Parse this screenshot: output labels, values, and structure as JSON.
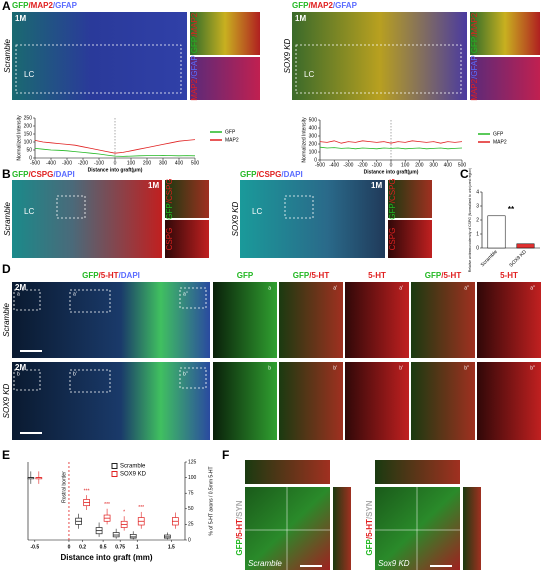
{
  "panels": {
    "A": {
      "letter": "A",
      "left": {
        "stain": {
          "parts": [
            "GFP",
            "/MAP2",
            "/GFAP"
          ],
          "colors": [
            "#22b822",
            "#e02020",
            "#5a6cff"
          ]
        },
        "time": "1M",
        "condition": "Scramble",
        "region": "LC",
        "insets": [
          {
            "parts": [
              "GFP",
              "/MAP2"
            ],
            "colors": [
              "#22b822",
              "#e02020"
            ]
          },
          {
            "parts": [
              "MAP2",
              "/GFAP"
            ],
            "colors": [
              "#e02020",
              "#5a6cff"
            ]
          }
        ]
      },
      "right": {
        "stain": {
          "parts": [
            "GFP",
            "/MAP2",
            "/GFAP"
          ],
          "colors": [
            "#22b822",
            "#e02020",
            "#5a6cff"
          ]
        },
        "time": "1M",
        "condition": "SOX9 KD",
        "region": "LC",
        "insets": [
          {
            "parts": [
              "GFP",
              "/MAP2"
            ],
            "colors": [
              "#22b822",
              "#e02020"
            ]
          },
          {
            "parts": [
              "MAP2",
              "/GFAP"
            ],
            "colors": [
              "#e02020",
              "#5a6cff"
            ]
          }
        ]
      }
    },
    "B": {
      "letter": "B",
      "left": {
        "stain": {
          "parts": [
            "GFP",
            "/CSPG",
            "/DAPI"
          ],
          "colors": [
            "#22b822",
            "#e02020",
            "#5a6cff"
          ]
        },
        "time": "1M",
        "condition": "Scramble",
        "region": "LC",
        "insets": [
          {
            "parts": [
              "GFP",
              "/CSPG"
            ],
            "colors": [
              "#22b822",
              "#e02020"
            ]
          },
          {
            "parts": [
              "CSPG"
            ],
            "colors": [
              "#e02020"
            ]
          }
        ]
      },
      "right": {
        "stain": {
          "parts": [
            "GFP",
            "/CSPG",
            "/DAPI"
          ],
          "colors": [
            "#22b822",
            "#e02020",
            "#5a6cff"
          ]
        },
        "time": "1M",
        "condition": "SOX9 KD",
        "region": "LC",
        "insets": [
          {
            "parts": [
              "GFP",
              "/CSPG"
            ],
            "colors": [
              "#22b822",
              "#e02020"
            ]
          },
          {
            "parts": [
              "CSPG"
            ],
            "colors": [
              "#e02020"
            ]
          }
        ]
      }
    },
    "C": {
      "letter": "C"
    },
    "D": {
      "letter": "D",
      "headers": [
        {
          "parts": [
            "GFP",
            "/5-HT",
            "/DAPI"
          ],
          "colors": [
            "#22b822",
            "#e02020",
            "#5a6cff"
          ]
        },
        {
          "parts": [
            "GFP"
          ],
          "colors": [
            "#22b822"
          ]
        },
        {
          "parts": [
            "GFP",
            "/5-HT"
          ],
          "colors": [
            "#22b822",
            "#e02020"
          ]
        },
        {
          "parts": [
            "5-HT"
          ],
          "colors": [
            "#e02020"
          ]
        },
        {
          "parts": [
            "GFP",
            "/5-HT"
          ],
          "colors": [
            "#22b822",
            "#e02020"
          ]
        },
        {
          "parts": [
            "5-HT"
          ],
          "colors": [
            "#e02020"
          ]
        }
      ],
      "rows": [
        {
          "condition": "Scramble",
          "time": "2M",
          "tags": [
            "a",
            "a'",
            "a''"
          ],
          "inset_tags": [
            "a",
            "a'",
            "a'",
            "a''",
            "a''"
          ]
        },
        {
          "condition": "SOX9 KD",
          "time": "2M",
          "tags": [
            "b",
            "b'",
            "b''"
          ],
          "inset_tags": [
            "b",
            "b'",
            "b'",
            "b''",
            "b''"
          ]
        }
      ]
    },
    "E": {
      "letter": "E"
    },
    "F": {
      "letter": "F",
      "stain": {
        "parts": [
          "GFP",
          "/5-HT",
          "/SYN"
        ],
        "colors": [
          "#22b822",
          "#e02020",
          "#aaaaaa"
        ]
      },
      "conditions": [
        "Scramble",
        "Sox9 KD"
      ]
    }
  },
  "chart_data": [
    {
      "type": "line",
      "ylabel": "Normalized Intensity",
      "xlabel": "Distance into graft(μm)",
      "x": [
        -500,
        -450,
        -400,
        -350,
        -300,
        -250,
        -200,
        -150,
        -100,
        -50,
        0,
        50,
        100,
        150,
        200,
        250,
        300,
        350,
        400,
        450,
        500
      ],
      "xlim": [
        -500,
        500
      ],
      "xticks": [
        -500,
        -400,
        -300,
        -200,
        -100,
        0,
        100,
        200,
        300,
        400,
        500
      ],
      "ylim": [
        0,
        250
      ],
      "yticks": [
        0,
        50,
        100,
        150,
        200,
        250
      ],
      "series": [
        {
          "name": "GFP",
          "color": "#22b822",
          "values": [
            60,
            55,
            50,
            48,
            45,
            40,
            35,
            30,
            25,
            18,
            12,
            10,
            12,
            14,
            15,
            15,
            16,
            15,
            14,
            15,
            14
          ]
        },
        {
          "name": "MAP2",
          "color": "#e02020",
          "values": [
            110,
            100,
            95,
            90,
            85,
            80,
            70,
            60,
            50,
            40,
            30,
            35,
            45,
            55,
            65,
            75,
            85,
            95,
            105,
            110,
            115
          ]
        }
      ]
    },
    {
      "type": "line",
      "ylabel": "Normalized Intensity",
      "xlabel": "Distance into graft(μm)",
      "x": [
        -500,
        -450,
        -400,
        -350,
        -300,
        -250,
        -200,
        -150,
        -100,
        -50,
        0,
        50,
        100,
        150,
        200,
        250,
        300,
        350,
        400,
        450,
        500
      ],
      "xlim": [
        -500,
        500
      ],
      "xticks": [
        -500,
        -400,
        -300,
        -200,
        -100,
        0,
        100,
        200,
        300,
        400,
        500
      ],
      "ylim": [
        0,
        500
      ],
      "yticks": [
        0,
        100,
        200,
        300,
        400,
        500
      ],
      "series": [
        {
          "name": "GFP",
          "color": "#22b822",
          "values": [
            160,
            150,
            155,
            145,
            150,
            140,
            150,
            145,
            140,
            150,
            145,
            150,
            140,
            145,
            150,
            140,
            145,
            150,
            140,
            145,
            150
          ]
        },
        {
          "name": "MAP2",
          "color": "#e02020",
          "values": [
            230,
            220,
            240,
            210,
            230,
            220,
            240,
            230,
            220,
            230,
            210,
            230,
            220,
            240,
            230,
            220,
            230,
            210,
            230,
            220,
            230
          ]
        }
      ]
    },
    {
      "type": "bar",
      "ylabel": "Relative antimmunodensity of CSPG (Normalized to uninjured region)",
      "categories": [
        "Scramble",
        "SOX9 KD"
      ],
      "values": [
        2.3,
        0.3
      ],
      "colors": [
        "#ffffff",
        "#e03030"
      ],
      "ylim": [
        0,
        4
      ],
      "yticks": [
        0,
        1,
        2,
        3,
        4
      ],
      "annotation": "**"
    },
    {
      "type": "box",
      "ylabel": "% of 5-HT axons / 0.5mm 5-HT",
      "xlabel": "Distance into graft (mm)",
      "note": "Rostral border",
      "x": [
        -0.5,
        0.2,
        0.5,
        0.75,
        1.0,
        1.5
      ],
      "xlim": [
        -0.6,
        1.7
      ],
      "xticks": [
        -0.5,
        0.0,
        0.2,
        0.5,
        0.75,
        1.0,
        1.5
      ],
      "ylim": [
        0,
        125
      ],
      "yticks": [
        0,
        25,
        50,
        75,
        100,
        125
      ],
      "series": [
        {
          "name": "Scramble",
          "color": "#222222",
          "values": [
            [
              90,
              98,
              100,
              100,
              110
            ],
            [
              18,
              25,
              30,
              35,
              42
            ],
            [
              5,
              10,
              15,
              20,
              28
            ],
            [
              2,
              5,
              8,
              12,
              18
            ],
            [
              1,
              3,
              5,
              9,
              14
            ],
            [
              1,
              3,
              5,
              8,
              12
            ]
          ]
        },
        {
          "name": "SOX9 KD",
          "color": "#e02020",
          "values": [
            [
              90,
              98,
              100,
              100,
              110
            ],
            [
              48,
              55,
              60,
              65,
              72
            ],
            [
              25,
              30,
              35,
              40,
              50
            ],
            [
              15,
              20,
              25,
              30,
              38
            ],
            [
              18,
              24,
              30,
              36,
              45
            ],
            [
              18,
              24,
              30,
              36,
              44
            ]
          ]
        }
      ],
      "annotations": [
        {
          "x": 0.2,
          "text": "***"
        },
        {
          "x": 0.5,
          "text": "***"
        },
        {
          "x": 0.75,
          "text": "*"
        },
        {
          "x": 1.0,
          "text": "***"
        }
      ]
    }
  ]
}
